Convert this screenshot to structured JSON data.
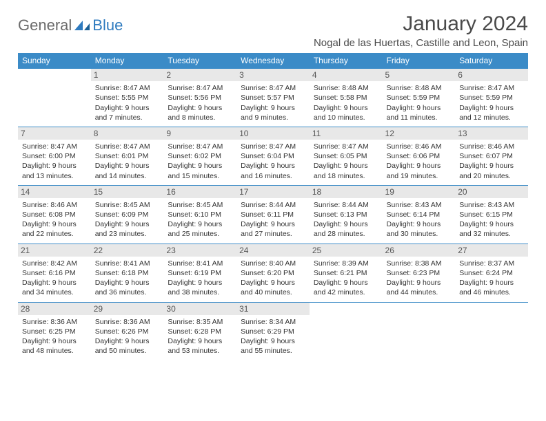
{
  "logo": {
    "text1": "General",
    "text2": "Blue"
  },
  "title": "January 2024",
  "subtitle": "Nogal de las Huertas, Castille and Leon, Spain",
  "colors": {
    "header_bg": "#3b8bc7",
    "header_fg": "#ffffff",
    "row_border": "#3b8bc7",
    "daynum_bg": "#e8e8e8",
    "logo_gray": "#6b6b6b",
    "logo_blue": "#2f7bbf"
  },
  "weekdays": [
    "Sunday",
    "Monday",
    "Tuesday",
    "Wednesday",
    "Thursday",
    "Friday",
    "Saturday"
  ],
  "weeks": [
    [
      null,
      {
        "n": "1",
        "sr": "8:47 AM",
        "ss": "5:55 PM",
        "dl1": "9 hours",
        "dl2": "and 7 minutes."
      },
      {
        "n": "2",
        "sr": "8:47 AM",
        "ss": "5:56 PM",
        "dl1": "9 hours",
        "dl2": "and 8 minutes."
      },
      {
        "n": "3",
        "sr": "8:47 AM",
        "ss": "5:57 PM",
        "dl1": "9 hours",
        "dl2": "and 9 minutes."
      },
      {
        "n": "4",
        "sr": "8:48 AM",
        "ss": "5:58 PM",
        "dl1": "9 hours",
        "dl2": "and 10 minutes."
      },
      {
        "n": "5",
        "sr": "8:48 AM",
        "ss": "5:59 PM",
        "dl1": "9 hours",
        "dl2": "and 11 minutes."
      },
      {
        "n": "6",
        "sr": "8:47 AM",
        "ss": "5:59 PM",
        "dl1": "9 hours",
        "dl2": "and 12 minutes."
      }
    ],
    [
      {
        "n": "7",
        "sr": "8:47 AM",
        "ss": "6:00 PM",
        "dl1": "9 hours",
        "dl2": "and 13 minutes."
      },
      {
        "n": "8",
        "sr": "8:47 AM",
        "ss": "6:01 PM",
        "dl1": "9 hours",
        "dl2": "and 14 minutes."
      },
      {
        "n": "9",
        "sr": "8:47 AM",
        "ss": "6:02 PM",
        "dl1": "9 hours",
        "dl2": "and 15 minutes."
      },
      {
        "n": "10",
        "sr": "8:47 AM",
        "ss": "6:04 PM",
        "dl1": "9 hours",
        "dl2": "and 16 minutes."
      },
      {
        "n": "11",
        "sr": "8:47 AM",
        "ss": "6:05 PM",
        "dl1": "9 hours",
        "dl2": "and 18 minutes."
      },
      {
        "n": "12",
        "sr": "8:46 AM",
        "ss": "6:06 PM",
        "dl1": "9 hours",
        "dl2": "and 19 minutes."
      },
      {
        "n": "13",
        "sr": "8:46 AM",
        "ss": "6:07 PM",
        "dl1": "9 hours",
        "dl2": "and 20 minutes."
      }
    ],
    [
      {
        "n": "14",
        "sr": "8:46 AM",
        "ss": "6:08 PM",
        "dl1": "9 hours",
        "dl2": "and 22 minutes."
      },
      {
        "n": "15",
        "sr": "8:45 AM",
        "ss": "6:09 PM",
        "dl1": "9 hours",
        "dl2": "and 23 minutes."
      },
      {
        "n": "16",
        "sr": "8:45 AM",
        "ss": "6:10 PM",
        "dl1": "9 hours",
        "dl2": "and 25 minutes."
      },
      {
        "n": "17",
        "sr": "8:44 AM",
        "ss": "6:11 PM",
        "dl1": "9 hours",
        "dl2": "and 27 minutes."
      },
      {
        "n": "18",
        "sr": "8:44 AM",
        "ss": "6:13 PM",
        "dl1": "9 hours",
        "dl2": "and 28 minutes."
      },
      {
        "n": "19",
        "sr": "8:43 AM",
        "ss": "6:14 PM",
        "dl1": "9 hours",
        "dl2": "and 30 minutes."
      },
      {
        "n": "20",
        "sr": "8:43 AM",
        "ss": "6:15 PM",
        "dl1": "9 hours",
        "dl2": "and 32 minutes."
      }
    ],
    [
      {
        "n": "21",
        "sr": "8:42 AM",
        "ss": "6:16 PM",
        "dl1": "9 hours",
        "dl2": "and 34 minutes."
      },
      {
        "n": "22",
        "sr": "8:41 AM",
        "ss": "6:18 PM",
        "dl1": "9 hours",
        "dl2": "and 36 minutes."
      },
      {
        "n": "23",
        "sr": "8:41 AM",
        "ss": "6:19 PM",
        "dl1": "9 hours",
        "dl2": "and 38 minutes."
      },
      {
        "n": "24",
        "sr": "8:40 AM",
        "ss": "6:20 PM",
        "dl1": "9 hours",
        "dl2": "and 40 minutes."
      },
      {
        "n": "25",
        "sr": "8:39 AM",
        "ss": "6:21 PM",
        "dl1": "9 hours",
        "dl2": "and 42 minutes."
      },
      {
        "n": "26",
        "sr": "8:38 AM",
        "ss": "6:23 PM",
        "dl1": "9 hours",
        "dl2": "and 44 minutes."
      },
      {
        "n": "27",
        "sr": "8:37 AM",
        "ss": "6:24 PM",
        "dl1": "9 hours",
        "dl2": "and 46 minutes."
      }
    ],
    [
      {
        "n": "28",
        "sr": "8:36 AM",
        "ss": "6:25 PM",
        "dl1": "9 hours",
        "dl2": "and 48 minutes."
      },
      {
        "n": "29",
        "sr": "8:36 AM",
        "ss": "6:26 PM",
        "dl1": "9 hours",
        "dl2": "and 50 minutes."
      },
      {
        "n": "30",
        "sr": "8:35 AM",
        "ss": "6:28 PM",
        "dl1": "9 hours",
        "dl2": "and 53 minutes."
      },
      {
        "n": "31",
        "sr": "8:34 AM",
        "ss": "6:29 PM",
        "dl1": "9 hours",
        "dl2": "and 55 minutes."
      },
      null,
      null,
      null
    ]
  ],
  "labels": {
    "sunrise": "Sunrise:",
    "sunset": "Sunset:",
    "daylight": "Daylight:"
  }
}
